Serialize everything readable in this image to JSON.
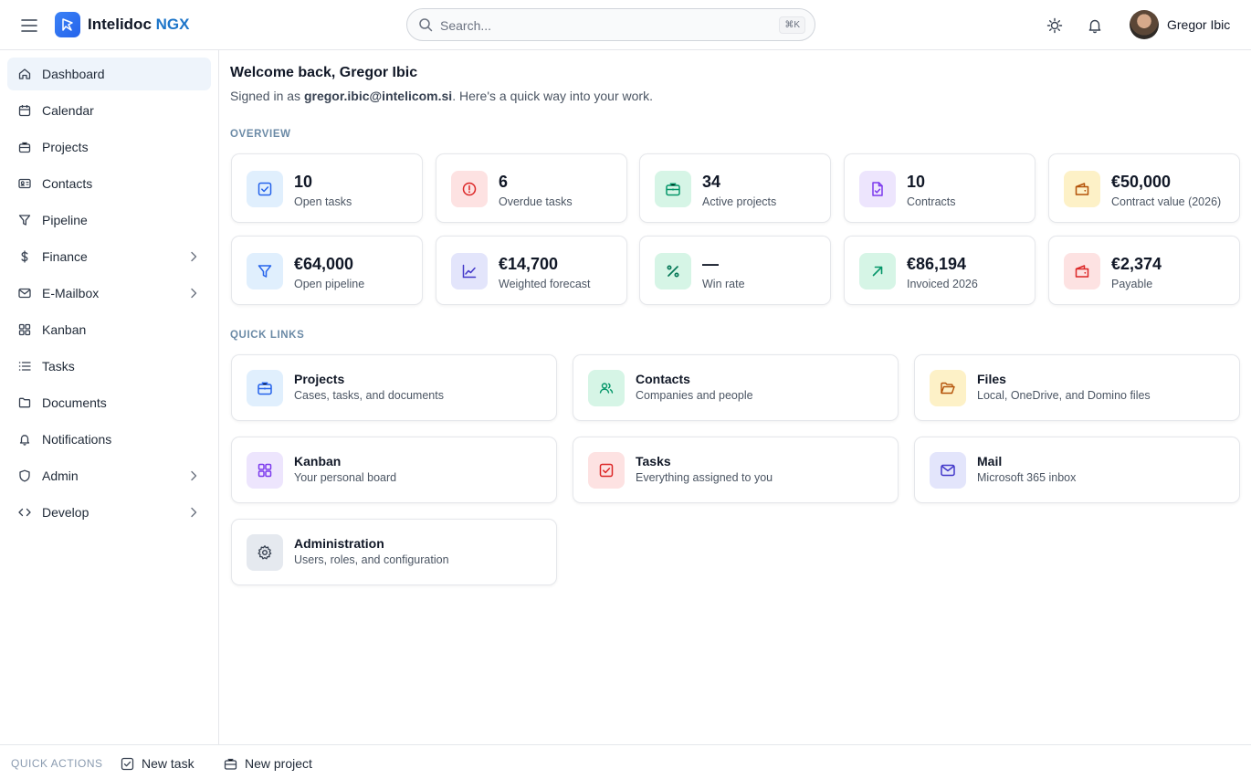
{
  "header": {
    "brand_name": "Intelidoc",
    "brand_accent": "NGX",
    "search_placeholder": "Search...",
    "search_shortcut": "⌘K",
    "user_name": "Gregor Ibic"
  },
  "sidebar": {
    "items": [
      {
        "label": "Dashboard",
        "icon": "home-icon",
        "active": true
      },
      {
        "label": "Calendar",
        "icon": "calendar-icon"
      },
      {
        "label": "Projects",
        "icon": "briefcase-icon"
      },
      {
        "label": "Contacts",
        "icon": "contact-card-icon"
      },
      {
        "label": "Pipeline",
        "icon": "funnel-icon"
      },
      {
        "label": "Finance",
        "icon": "dollar-icon",
        "expandable": true
      },
      {
        "label": "E-Mailbox",
        "icon": "mail-icon",
        "expandable": true
      },
      {
        "label": "Kanban",
        "icon": "grid-icon"
      },
      {
        "label": "Tasks",
        "icon": "list-icon"
      },
      {
        "label": "Documents",
        "icon": "folder-icon"
      },
      {
        "label": "Notifications",
        "icon": "bell-icon"
      },
      {
        "label": "Admin",
        "icon": "shield-icon",
        "expandable": true
      },
      {
        "label": "Develop",
        "icon": "code-icon",
        "expandable": true
      }
    ]
  },
  "main": {
    "welcome": "Welcome back, Gregor Ibic",
    "signed_prefix": "Signed in as ",
    "signed_email": "gregor.ibic@intelicom.si",
    "signed_suffix": ". Here's a quick way into your work.",
    "overview_label": "OVERVIEW",
    "stats": [
      {
        "value": "10",
        "label": "Open tasks",
        "icon": "check-square-icon",
        "color": "#2563eb",
        "bg": "#e0effd"
      },
      {
        "value": "6",
        "label": "Overdue tasks",
        "icon": "alert-circle-icon",
        "color": "#dc2626",
        "bg": "#fde2e2"
      },
      {
        "value": "34",
        "label": "Active projects",
        "icon": "briefcase-icon",
        "color": "#059669",
        "bg": "#d6f5e6"
      },
      {
        "value": "10",
        "label": "Contracts",
        "icon": "file-check-icon",
        "color": "#7c3aed",
        "bg": "#ede5fd"
      },
      {
        "value": "€50,000",
        "label": "Contract value (2026)",
        "icon": "wallet-icon",
        "color": "#b45309",
        "bg": "#fdf1c7"
      },
      {
        "value": "€64,000",
        "label": "Open pipeline",
        "icon": "funnel-icon",
        "color": "#2563eb",
        "bg": "#e0effd"
      },
      {
        "value": "€14,700",
        "label": "Weighted forecast",
        "icon": "chart-line-icon",
        "color": "#4338ca",
        "bg": "#e3e5fb"
      },
      {
        "value": "—",
        "label": "Win rate",
        "icon": "percent-icon",
        "color": "#047857",
        "bg": "#d6f5e6"
      },
      {
        "value": "€86,194",
        "label": "Invoiced 2026",
        "icon": "arrow-up-right-icon",
        "color": "#059669",
        "bg": "#d6f5e6"
      },
      {
        "value": "€2,374",
        "label": "Payable",
        "icon": "wallet-icon",
        "color": "#dc2626",
        "bg": "#fde2e2"
      }
    ],
    "quick_links_label": "QUICK LINKS",
    "links": [
      {
        "title": "Projects",
        "sub": "Cases, tasks, and documents",
        "icon": "briefcase-icon",
        "color": "#2563eb",
        "bg": "#e0effd"
      },
      {
        "title": "Contacts",
        "sub": "Companies and people",
        "icon": "users-icon",
        "color": "#059669",
        "bg": "#d6f5e6"
      },
      {
        "title": "Files",
        "sub": "Local, OneDrive, and Domino files",
        "icon": "folder-open-icon",
        "color": "#b45309",
        "bg": "#fdf1c7"
      },
      {
        "title": "Kanban",
        "sub": "Your personal board",
        "icon": "grid-icon",
        "color": "#7c3aed",
        "bg": "#ede5fd"
      },
      {
        "title": "Tasks",
        "sub": "Everything assigned to you",
        "icon": "check-square-icon",
        "color": "#dc2626",
        "bg": "#fde2e2"
      },
      {
        "title": "Mail",
        "sub": "Microsoft 365 inbox",
        "icon": "mail-icon",
        "color": "#4338ca",
        "bg": "#e3e5fb"
      },
      {
        "title": "Administration",
        "sub": "Users, roles, and configuration",
        "icon": "gear-icon",
        "color": "#374151",
        "bg": "#e5e9ef"
      }
    ]
  },
  "bottombar": {
    "label": "QUICK ACTIONS",
    "new_task": "New task",
    "new_project": "New project"
  }
}
